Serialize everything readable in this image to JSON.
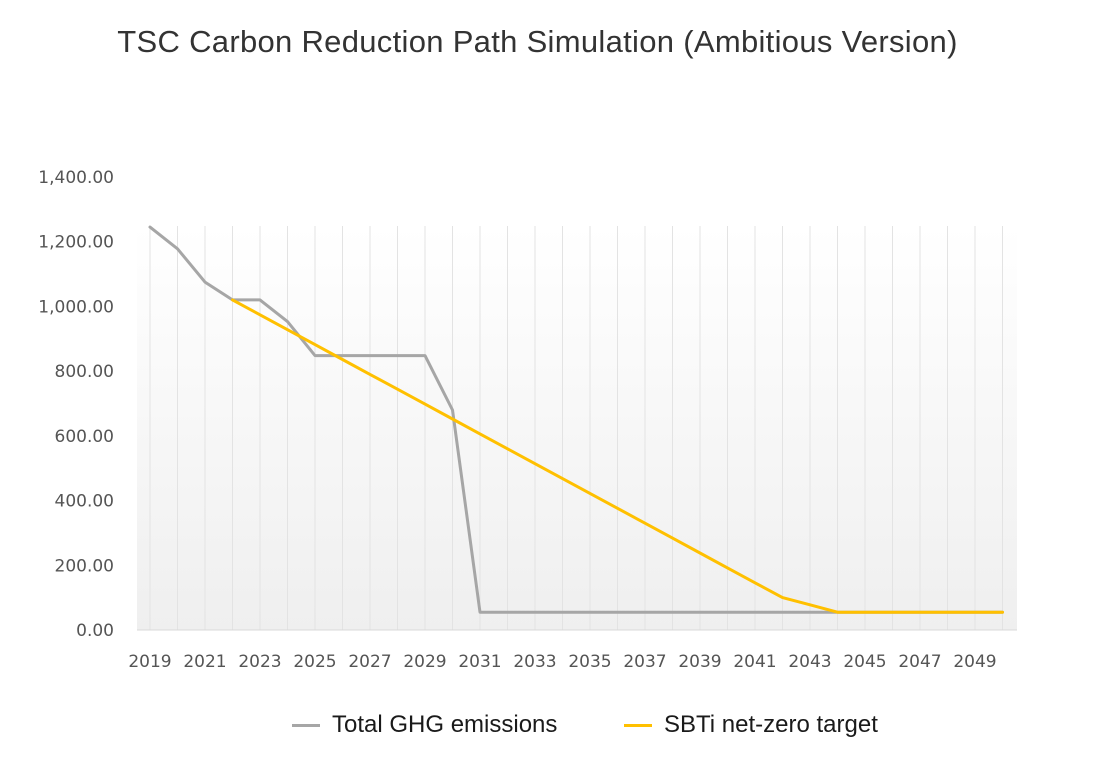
{
  "chart_data": {
    "type": "line",
    "title": "TSC Carbon Reduction Path Simulation (Ambitious Version)",
    "xlabel": "",
    "ylabel": "",
    "ylim": [
      0,
      1400
    ],
    "yticks": [
      "0.00",
      "200.00",
      "400.00",
      "600.00",
      "800.00",
      "1,000.00",
      "1,200.00",
      "1,400.00"
    ],
    "x": [
      2019,
      2020,
      2021,
      2022,
      2023,
      2024,
      2025,
      2026,
      2027,
      2028,
      2029,
      2030,
      2031,
      2032,
      2033,
      2034,
      2035,
      2036,
      2037,
      2038,
      2039,
      2040,
      2041,
      2042,
      2043,
      2044,
      2045,
      2046,
      2047,
      2048,
      2049,
      2050
    ],
    "xtick_labels": [
      "2019",
      "2021",
      "2023",
      "2025",
      "2027",
      "2029",
      "2031",
      "2033",
      "2035",
      "2037",
      "2039",
      "2041",
      "2043",
      "2045",
      "2047",
      "2049"
    ],
    "grid": "vertical",
    "legend_position": "bottom",
    "series": [
      {
        "name": "Total GHG emissions",
        "color": "#a6a6a6",
        "values": [
          1245,
          1178,
          1075,
          1020,
          1020,
          953,
          848,
          848,
          848,
          848,
          848,
          680,
          55,
          55,
          55,
          55,
          55,
          55,
          55,
          55,
          55,
          55,
          55,
          55,
          55,
          55,
          55,
          55,
          55,
          55,
          55,
          55
        ]
      },
      {
        "name": "SBTi net-zero target",
        "color": "#ffc000",
        "values": [
          null,
          null,
          null,
          1020,
          974,
          928,
          882,
          836,
          790,
          744,
          698,
          652,
          606,
          560,
          514,
          468,
          422,
          376,
          330,
          284,
          238,
          192,
          146,
          100,
          78,
          55,
          55,
          55,
          55,
          55,
          55,
          55
        ]
      }
    ]
  }
}
